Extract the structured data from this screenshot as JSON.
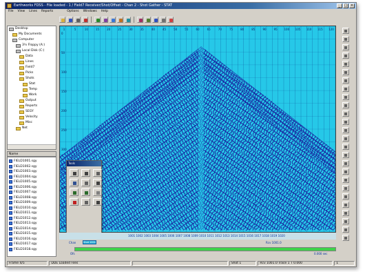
{
  "window": {
    "title": "Earthworks FDSS - File loaded - 1 / Field7 Receiver/Shot/Offset - Chan 2 - Shot Gather - STAT",
    "controls": [
      "_",
      "□",
      "×"
    ]
  },
  "menu": [
    "File",
    "View",
    "Lines",
    "Reports",
    "Options",
    "Windows",
    "Help"
  ],
  "toolbar_icons": [
    "open-icon",
    "save-icon",
    "print-icon",
    "undo-icon",
    "zoom-icon",
    "cut-icon",
    "copy-icon",
    "paste-icon",
    "pick-icon",
    "trace-icon",
    "filter-icon",
    "help-icon",
    "settings-icon",
    "color-icon"
  ],
  "tree": {
    "items": [
      {
        "label": "Desktop",
        "icon": "drive",
        "indent": 0
      },
      {
        "label": "My Documents",
        "icon": "folder",
        "indent": 1
      },
      {
        "label": "Computer",
        "icon": "drive",
        "indent": 1
      },
      {
        "label": "3½ Floppy (A:)",
        "icon": "drive",
        "indent": 2
      },
      {
        "label": "Local Disk (C:)",
        "icon": "drive",
        "indent": 2
      },
      {
        "label": "Data",
        "icon": "folder",
        "indent": 3
      },
      {
        "label": "Lines",
        "icon": "folder",
        "indent": 3
      },
      {
        "label": "Field7",
        "icon": "folder",
        "indent": 3
      },
      {
        "label": "Picks",
        "icon": "folder",
        "indent": 3
      },
      {
        "label": "Shots",
        "icon": "folder",
        "indent": 3
      },
      {
        "label": "Stat",
        "icon": "folder",
        "indent": 4
      },
      {
        "label": "Temp",
        "icon": "folder",
        "indent": 4
      },
      {
        "label": "Work",
        "icon": "folder",
        "indent": 4
      },
      {
        "label": "Output",
        "icon": "folder",
        "indent": 3
      },
      {
        "label": "Reports",
        "icon": "folder",
        "indent": 3
      },
      {
        "label": "SEGY",
        "icon": "folder",
        "indent": 3
      },
      {
        "label": "Velocity",
        "icon": "folder",
        "indent": 3
      },
      {
        "label": "Misc",
        "icon": "folder",
        "indent": 3
      },
      {
        "label": "Net",
        "icon": "folder",
        "indent": 2
      }
    ]
  },
  "filelist": {
    "header": "Name",
    "files": [
      "FIELD1001.sgy",
      "FIELD1002.sgy",
      "FIELD1003.sgy",
      "FIELD1004.sgy",
      "FIELD1005.sgy",
      "FIELD1006.sgy",
      "FIELD1007.sgy",
      "FIELD1008.sgy",
      "FIELD1009.sgy",
      "FIELD1010.sgy",
      "FIELD1011.sgy",
      "FIELD1012.sgy",
      "FIELD1013.sgy",
      "FIELD1014.sgy",
      "FIELD1015.sgy",
      "FIELD1016.sgy",
      "FIELD1017.sgy",
      "FIELD1018.sgy"
    ]
  },
  "palette": {
    "title": "Tools",
    "tools": [
      "pointer-icon",
      "hand-icon",
      "pick-icon",
      "pencil-icon",
      "ruler-icon",
      "filter-icon",
      "zoom-in-icon",
      "zoom-out-icon",
      "mute-icon",
      "delete-icon",
      "help-icon",
      "refresh-icon"
    ]
  },
  "plot": {
    "background": "#26c8e8",
    "trace_color": "#1a1a9c",
    "grid_color": "#0a3a8c",
    "x_ticks": [
      "1",
      "5",
      "10",
      "15",
      "20",
      "25",
      "30",
      "35",
      "40",
      "45",
      "50",
      "55",
      "60",
      "65",
      "70",
      "75",
      "80",
      "85",
      "90",
      "95",
      "100",
      "105",
      "110",
      "115",
      "120"
    ],
    "y_ticks": [
      "0",
      "50",
      "100",
      "150",
      "200",
      "250",
      "300",
      "350",
      "400",
      "450",
      "500"
    ],
    "bottom_labels": "1001 1002 1003 1004 1005 1006 1007 1008 1009 1010 1011 1012 1013 1014 1015 1016 1017 1018 1019 1020",
    "left_label": "Chan",
    "badge": "Shot 1001",
    "marker": "Rcv 1001.0"
  },
  "progress": {
    "fraction": 1.0,
    "color": "#3ed24a",
    "left_label": "Ofs",
    "right_label": "0.000 sec"
  },
  "statusbar": [
    "Frame 4/5",
    "DDE Loaded Files",
    "",
    "Shot 1",
    "Rcv 1001.0  Trace 1  T 0.000",
    "1"
  ]
}
